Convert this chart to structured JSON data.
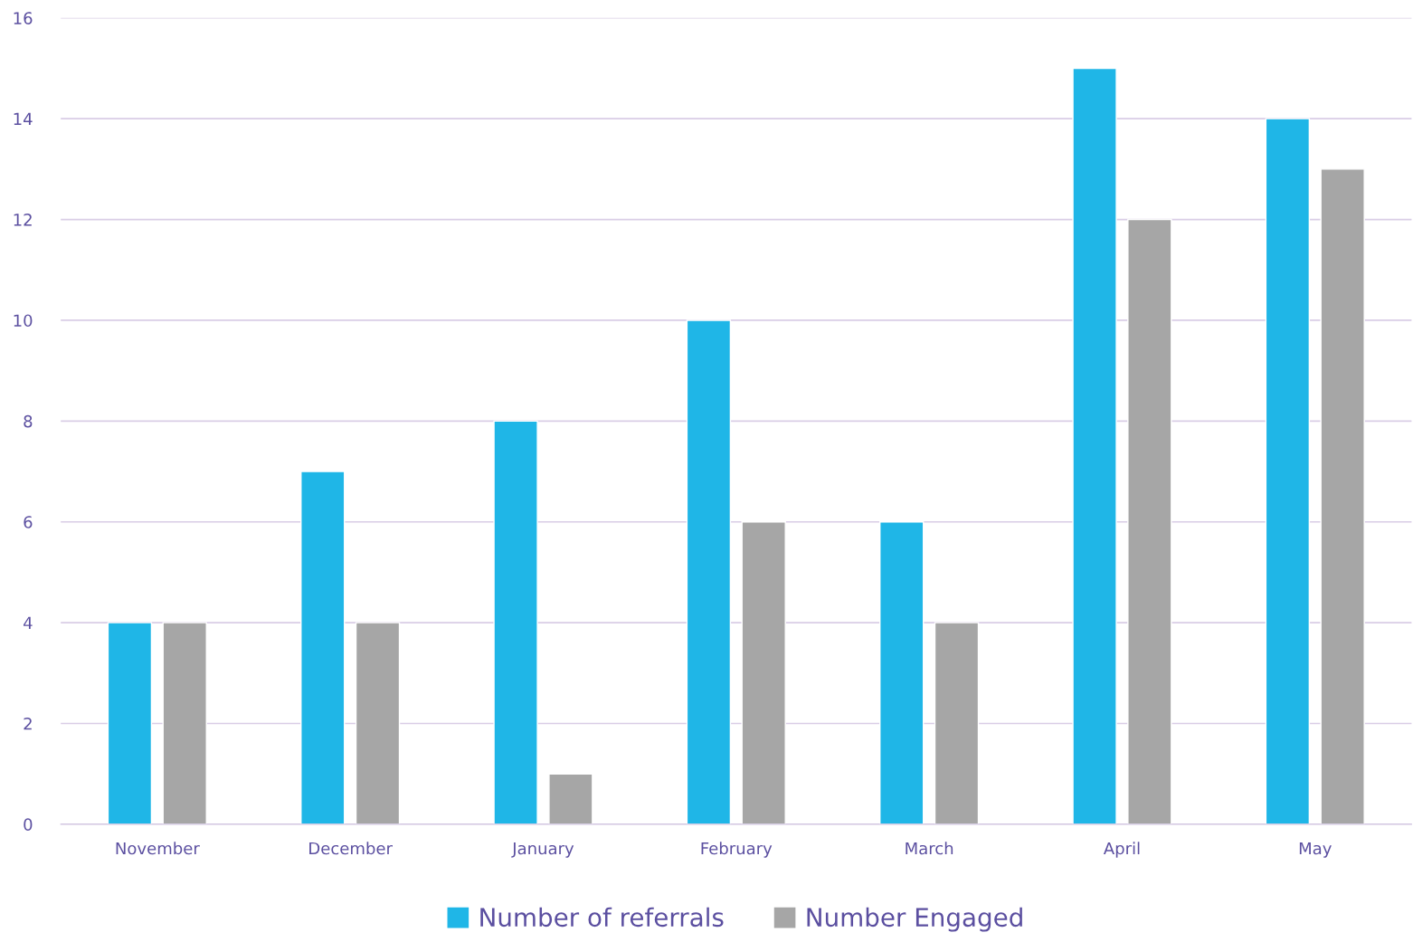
{
  "chart_data": {
    "type": "bar",
    "categories": [
      "November",
      "December",
      "January",
      "February",
      "March",
      "April",
      "May"
    ],
    "series": [
      {
        "name": "Number of referrals",
        "color": "#1fb6e7",
        "values": [
          4,
          7,
          8,
          10,
          6,
          15,
          14
        ]
      },
      {
        "name": "Number Engaged",
        "color": "#a6a6a6",
        "values": [
          4,
          4,
          1,
          6,
          4,
          12,
          13
        ]
      }
    ],
    "ylim": [
      0,
      16
    ],
    "yticks": [
      0,
      2,
      4,
      6,
      8,
      10,
      12,
      14,
      16
    ],
    "grid": "y",
    "legend": "bottom"
  }
}
